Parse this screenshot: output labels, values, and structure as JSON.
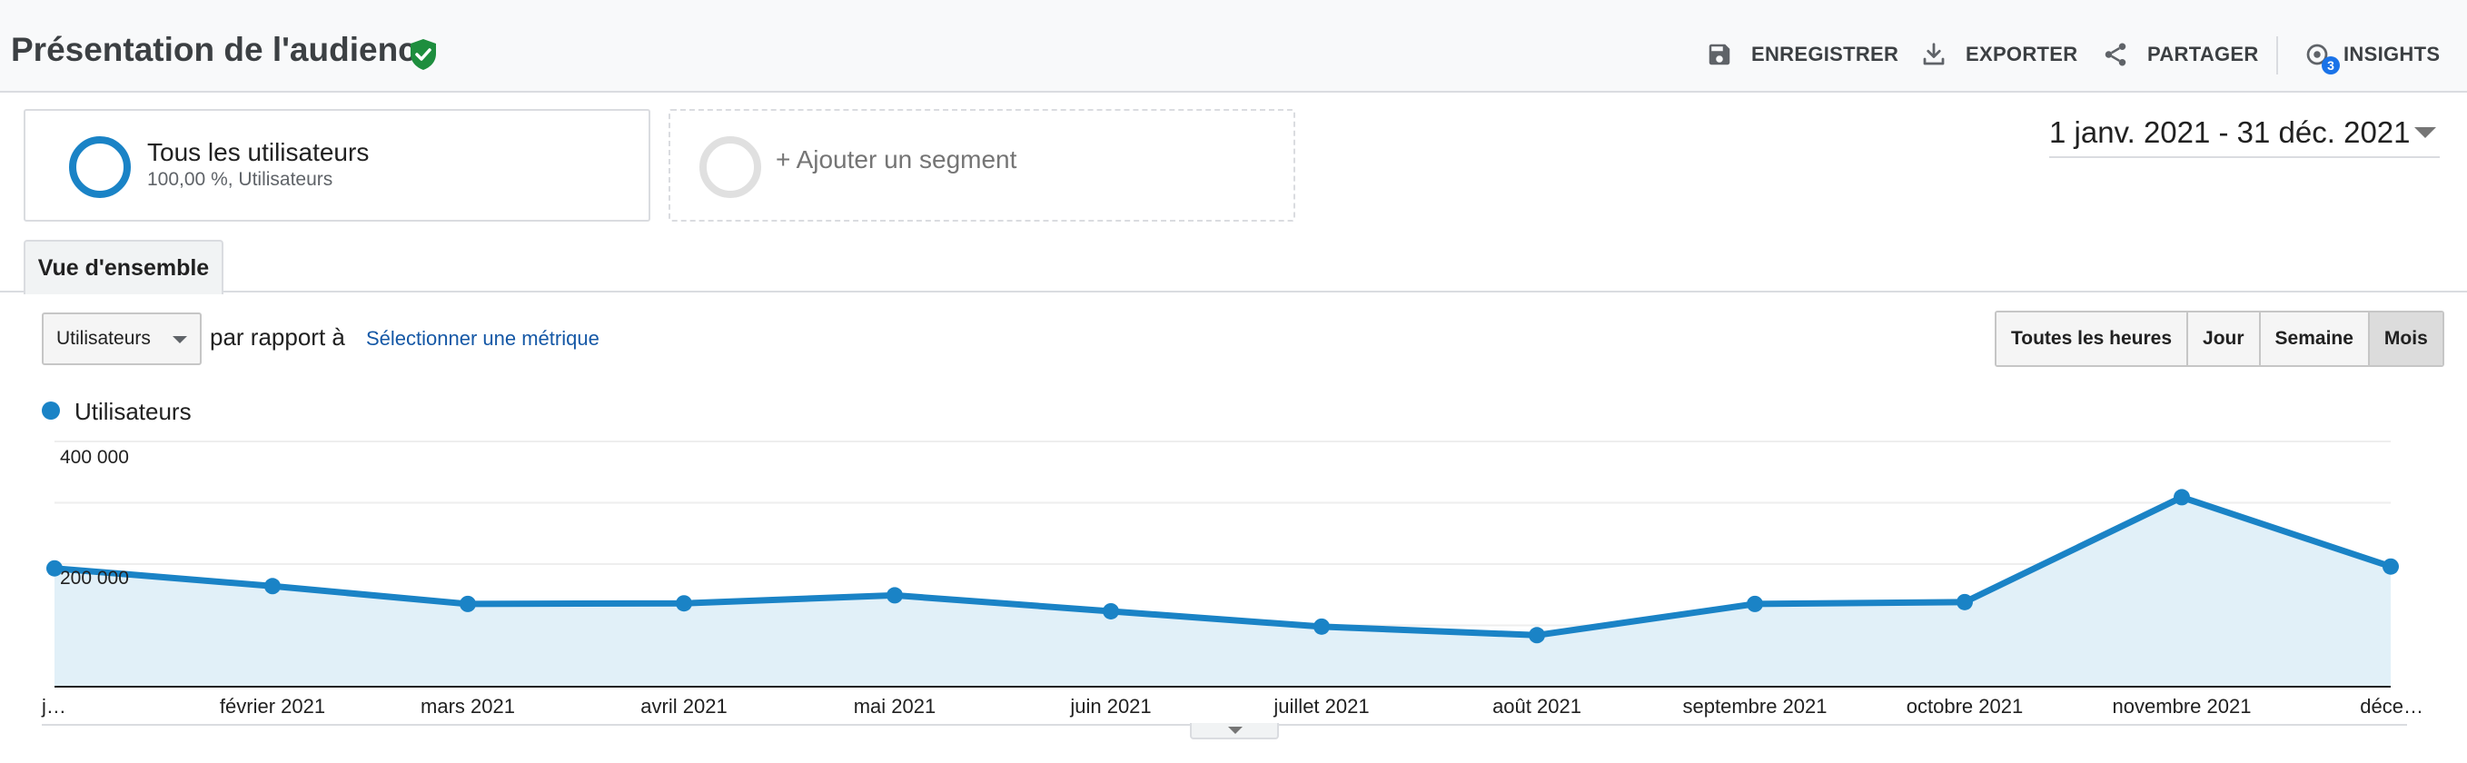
{
  "header": {
    "title": "Présentation de l'audience",
    "actions": {
      "save": "ENREGISTRER",
      "export": "EXPORTER",
      "share": "PARTAGER",
      "insights": "INSIGHTS",
      "insights_badge": "3"
    }
  },
  "segments": {
    "active": {
      "title": "Tous les utilisateurs",
      "subtitle": "100,00 %, Utilisateurs"
    },
    "add": "+ Ajouter un segment"
  },
  "date_range": "1 janv. 2021 - 31 déc. 2021",
  "tabs": [
    "Vue d'ensemble"
  ],
  "controls": {
    "metric": "Utilisateurs",
    "compare_text": "par rapport à",
    "select_metric": "Sélectionner une métrique",
    "periods": [
      "Toutes les heures",
      "Jour",
      "Semaine",
      "Mois"
    ],
    "active_period": "Mois"
  },
  "colors": {
    "series": "#1a83c6",
    "area": "#e1f0f8",
    "shield": "#1e8e3e"
  },
  "chart_data": {
    "type": "area",
    "x": [
      "j…",
      "février 2021",
      "mars 2021",
      "avril 2021",
      "mai 2021",
      "juin 2021",
      "juillet 2021",
      "août 2021",
      "septembre 2021",
      "octobre 2021",
      "novembre 2021",
      "déce…"
    ],
    "series": [
      {
        "name": "Utilisateurs",
        "values": [
          193000,
          164000,
          135000,
          136000,
          149000,
          123000,
          98000,
          84000,
          135000,
          138000,
          309000,
          196000
        ]
      }
    ],
    "yticks": [
      "400 000",
      "200 000"
    ],
    "ylim": [
      0,
      400000
    ],
    "grid": true,
    "legend": "top-left"
  }
}
